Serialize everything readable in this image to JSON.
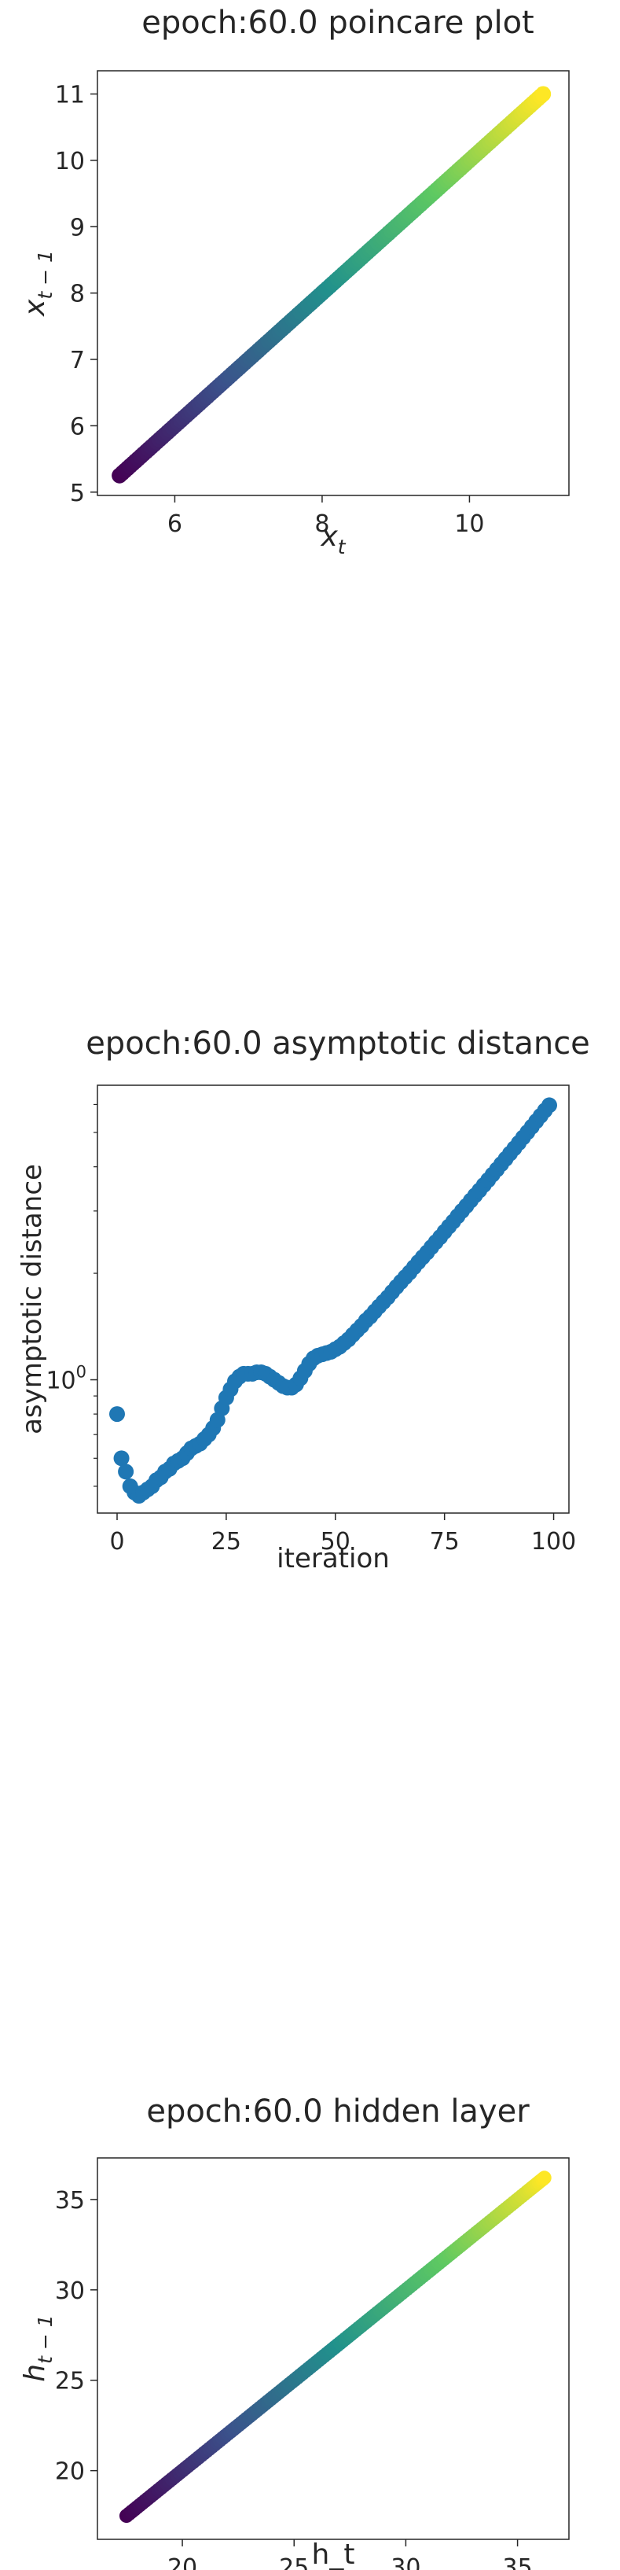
{
  "chart_data": [
    {
      "type": "scatter",
      "title": "epoch:60.0 poincare plot",
      "xlabel": "x",
      "xlabel_sub": "t",
      "ylabel": "x",
      "ylabel_sub": "t − 1",
      "xlim": [
        4.95,
        11.35
      ],
      "ylim": [
        4.95,
        11.35
      ],
      "x_ticks": [
        6,
        8,
        10
      ],
      "y_ticks": [
        5,
        6,
        7,
        8,
        9,
        10,
        11
      ],
      "colormap": "viridis",
      "x": [
        5.25,
        5.5,
        5.75,
        6.0,
        6.25,
        6.5,
        6.75,
        7.0,
        7.25,
        7.5,
        7.75,
        8.0,
        8.25,
        8.5,
        8.75,
        9.0,
        9.25,
        9.5,
        9.75,
        10.0,
        10.25,
        10.5,
        10.75,
        11.0
      ],
      "y": [
        5.25,
        5.5,
        5.75,
        6.0,
        6.25,
        6.5,
        6.75,
        7.0,
        7.25,
        7.5,
        7.75,
        8.0,
        8.25,
        8.5,
        8.75,
        9.0,
        9.25,
        9.5,
        9.75,
        10.0,
        10.25,
        10.5,
        10.75,
        11.0
      ]
    },
    {
      "type": "scatter",
      "title": "epoch:60.0 asymptotic distance",
      "xlabel": "iteration",
      "ylabel": "asymptotic distance",
      "yscale": "log",
      "xlim": [
        -4.5,
        103.5
      ],
      "ylim": [
        0.42,
        6.8
      ],
      "x_ticks": [
        0,
        25,
        50,
        75,
        100
      ],
      "y_major_ticks": [
        {
          "value": 1,
          "label": "10",
          "exp": "0"
        }
      ],
      "y_minor_ticks": [
        0.5,
        0.6,
        0.7,
        0.8,
        0.9,
        2,
        3,
        4,
        5,
        6
      ],
      "color": "#1f77b4",
      "x": [
        0,
        1,
        2,
        3,
        4,
        5,
        6,
        7,
        8,
        9,
        10,
        11,
        12,
        13,
        14,
        15,
        16,
        17,
        18,
        19,
        20,
        21,
        22,
        23,
        24,
        25,
        26,
        27,
        28,
        29,
        30,
        31,
        32,
        33,
        34,
        35,
        36,
        37,
        38,
        39,
        40,
        41,
        42,
        43,
        44,
        45,
        46,
        47,
        48,
        49,
        50,
        51,
        52,
        53,
        54,
        55,
        56,
        57,
        58,
        59,
        60,
        61,
        62,
        63,
        64,
        65,
        66,
        67,
        68,
        69,
        70,
        71,
        72,
        73,
        74,
        75,
        76,
        77,
        78,
        79,
        80,
        81,
        82,
        83,
        84,
        85,
        86,
        87,
        88,
        89,
        90,
        91,
        92,
        93,
        94,
        95,
        96,
        97,
        98,
        99
      ],
      "y": [
        0.8,
        0.6,
        0.55,
        0.5,
        0.48,
        0.47,
        0.48,
        0.49,
        0.5,
        0.52,
        0.53,
        0.55,
        0.56,
        0.58,
        0.59,
        0.6,
        0.62,
        0.64,
        0.65,
        0.66,
        0.68,
        0.7,
        0.73,
        0.77,
        0.83,
        0.89,
        0.94,
        0.99,
        1.02,
        1.04,
        1.04,
        1.04,
        1.05,
        1.05,
        1.04,
        1.02,
        1.0,
        0.98,
        0.96,
        0.95,
        0.95,
        0.97,
        1.01,
        1.06,
        1.11,
        1.15,
        1.17,
        1.18,
        1.19,
        1.2,
        1.22,
        1.24,
        1.27,
        1.3,
        1.34,
        1.38,
        1.42,
        1.47,
        1.51,
        1.56,
        1.61,
        1.66,
        1.71,
        1.77,
        1.83,
        1.89,
        1.95,
        2.01,
        2.08,
        2.15,
        2.22,
        2.29,
        2.37,
        2.45,
        2.53,
        2.62,
        2.71,
        2.8,
        2.9,
        3.0,
        3.1,
        3.21,
        3.32,
        3.43,
        3.55,
        3.67,
        3.8,
        3.93,
        4.07,
        4.21,
        4.36,
        4.51,
        4.67,
        4.84,
        5.01,
        5.19,
        5.38,
        5.57,
        5.77,
        5.97
      ]
    },
    {
      "type": "scatter",
      "title": "epoch:60.0 hidden layer",
      "xlabel": "h_t",
      "ylabel": "h",
      "ylabel_sub": "t − 1",
      "xlim": [
        16.2,
        37.3
      ],
      "ylim": [
        16.2,
        37.3
      ],
      "x_ticks": [
        20,
        25,
        30,
        35
      ],
      "y_ticks": [
        20,
        25,
        30,
        35
      ],
      "colormap": "viridis",
      "x": [
        17.5,
        18.5,
        19.5,
        20.5,
        21.5,
        22.5,
        23.5,
        24.5,
        25.5,
        26.5,
        27.5,
        28.5,
        29.5,
        30.5,
        31.5,
        32.5,
        33.5,
        34.5,
        35.5,
        36.2
      ],
      "y": [
        17.5,
        18.5,
        19.5,
        20.5,
        21.5,
        22.5,
        23.5,
        24.5,
        25.5,
        26.5,
        27.5,
        28.5,
        29.5,
        30.5,
        31.5,
        32.5,
        33.5,
        34.5,
        35.5,
        36.2
      ]
    }
  ]
}
